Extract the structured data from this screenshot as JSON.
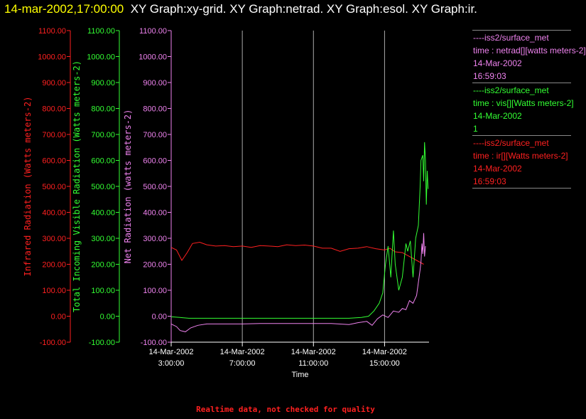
{
  "header": {
    "timestamp": "14-mar-2002,17:00:00",
    "graphs": "XY Graph:xy-grid.  XY Graph:netrad.  XY Graph:esol.  XY Graph:ir."
  },
  "footer": "Realtime data, not checked for quality",
  "colors": {
    "infrared": "#ff2020",
    "visible": "#33ff33",
    "net": "#ee82ee",
    "axis": "#ffffff",
    "grid": "#aaaaaa"
  },
  "legend": [
    {
      "source": "----iss2/surface_met",
      "line": "time : netrad[][watts meters-2]",
      "date": "14-Mar-2002",
      "value": "16:59:03",
      "color": "#ee82ee"
    },
    {
      "source": "----iss2/surface_met",
      "line": "time : vis[][Watts meters-2]",
      "date": "14-Mar-2002",
      "value": "1",
      "color": "#33ff33"
    },
    {
      "source": "----iss2/surface_met",
      "line": "time : ir[][Watts meters-2]",
      "date": "14-Mar-2002",
      "value": "16:59:03",
      "color": "#ff2020"
    }
  ],
  "chart_data": {
    "type": "line",
    "xlabel": "Time",
    "x_ticks": [
      {
        "hour": 3,
        "date": "14-Mar-2002",
        "time": "3:00:00"
      },
      {
        "hour": 7,
        "date": "14-Mar-2002",
        "time": "7:00:00"
      },
      {
        "hour": 11,
        "date": "14-Mar-2002",
        "time": "11:00:00"
      },
      {
        "hour": 15,
        "date": "14-Mar-2002",
        "time": "15:00:00"
      }
    ],
    "xlim_hours": [
      3,
      17.5
    ],
    "ylim": [
      -100,
      1100
    ],
    "y_ticks": [
      "-100.00",
      "0.00",
      "100.00",
      "200.00",
      "300.00",
      "400.00",
      "500.00",
      "600.00",
      "700.00",
      "800.00",
      "900.00",
      "1000.00",
      "1100.00"
    ],
    "grid": "vertical",
    "axes": [
      {
        "key": "infrared",
        "label": "Infrared Radiation (Watts meters-2)",
        "color": "#ff2020"
      },
      {
        "key": "visible",
        "label": "Total Incoming Visible Radiation (Watts meters-2)",
        "color": "#33ff33"
      },
      {
        "key": "net",
        "label": "Net Radiation (watts meters-2)",
        "color": "#ee82ee"
      }
    ],
    "series": [
      {
        "key": "infrared",
        "color": "#ff2020",
        "points": [
          [
            3,
            265
          ],
          [
            3.3,
            255
          ],
          [
            3.6,
            215
          ],
          [
            3.9,
            245
          ],
          [
            4.2,
            280
          ],
          [
            4.6,
            285
          ],
          [
            5,
            275
          ],
          [
            5.5,
            270
          ],
          [
            6,
            272
          ],
          [
            6.5,
            268
          ],
          [
            7,
            270
          ],
          [
            7.5,
            265
          ],
          [
            8,
            272
          ],
          [
            8.5,
            270
          ],
          [
            9,
            268
          ],
          [
            9.5,
            275
          ],
          [
            10,
            272
          ],
          [
            10.5,
            274
          ],
          [
            11,
            270
          ],
          [
            11.5,
            262
          ],
          [
            12,
            262
          ],
          [
            12.5,
            250
          ],
          [
            13,
            260
          ],
          [
            13.5,
            262
          ],
          [
            14,
            268
          ],
          [
            14.5,
            260
          ],
          [
            15,
            255
          ],
          [
            15.3,
            262
          ],
          [
            15.6,
            248
          ],
          [
            16,
            245
          ],
          [
            16.4,
            230
          ],
          [
            16.8,
            215
          ],
          [
            17.2,
            200
          ]
        ]
      },
      {
        "key": "visible",
        "color": "#33ff33",
        "points": [
          [
            3,
            -2
          ],
          [
            4,
            -8
          ],
          [
            5,
            -8
          ],
          [
            6,
            -8
          ],
          [
            7,
            -8
          ],
          [
            8,
            -8
          ],
          [
            9,
            -8
          ],
          [
            10,
            -8
          ],
          [
            11,
            -8
          ],
          [
            12,
            -8
          ],
          [
            13,
            -8
          ],
          [
            13.7,
            -5
          ],
          [
            14.1,
            0
          ],
          [
            14.4,
            20
          ],
          [
            14.7,
            50
          ],
          [
            14.9,
            90
          ],
          [
            15.05,
            200
          ],
          [
            15.2,
            270
          ],
          [
            15.35,
            150
          ],
          [
            15.5,
            330
          ],
          [
            15.6,
            200
          ],
          [
            15.8,
            100
          ],
          [
            16,
            150
          ],
          [
            16.2,
            280
          ],
          [
            16.3,
            250
          ],
          [
            16.45,
            290
          ],
          [
            16.6,
            150
          ],
          [
            16.75,
            300
          ],
          [
            16.9,
            350
          ],
          [
            17.0,
            500
          ],
          [
            17.05,
            600
          ],
          [
            17.15,
            620
          ],
          [
            17.2,
            520
          ],
          [
            17.25,
            670
          ],
          [
            17.3,
            600
          ],
          [
            17.35,
            430
          ],
          [
            17.4,
            560
          ],
          [
            17.45,
            490
          ]
        ]
      },
      {
        "key": "net",
        "color": "#ee82ee",
        "points": [
          [
            3,
            -30
          ],
          [
            3.3,
            -40
          ],
          [
            3.5,
            -55
          ],
          [
            3.8,
            -60
          ],
          [
            4.1,
            -45
          ],
          [
            4.5,
            -35
          ],
          [
            5,
            -30
          ],
          [
            6,
            -30
          ],
          [
            7,
            -30
          ],
          [
            8,
            -28
          ],
          [
            9,
            -28
          ],
          [
            10,
            -28
          ],
          [
            11,
            -28
          ],
          [
            12,
            -28
          ],
          [
            13,
            -32
          ],
          [
            13.5,
            -25
          ],
          [
            14,
            -20
          ],
          [
            14.3,
            -35
          ],
          [
            14.6,
            -10
          ],
          [
            14.9,
            5
          ],
          [
            15.2,
            -5
          ],
          [
            15.5,
            20
          ],
          [
            15.8,
            15
          ],
          [
            16,
            30
          ],
          [
            16.2,
            25
          ],
          [
            16.4,
            60
          ],
          [
            16.6,
            50
          ],
          [
            16.8,
            80
          ],
          [
            17.0,
            180
          ],
          [
            17.05,
            210
          ],
          [
            17.1,
            280
          ],
          [
            17.15,
            240
          ],
          [
            17.2,
            320
          ],
          [
            17.25,
            230
          ],
          [
            17.3,
            270
          ]
        ]
      }
    ]
  }
}
